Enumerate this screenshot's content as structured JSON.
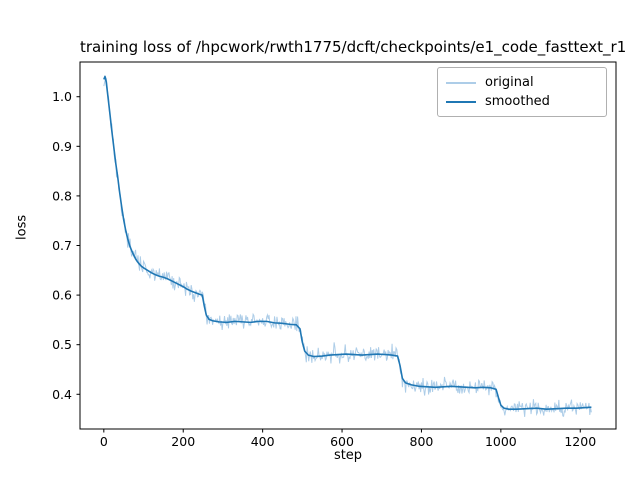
{
  "chart_data": {
    "type": "line",
    "title": "training loss of /hpcwork/rwth1775/dcft/checkpoints/e1_code_fasttext_r1",
    "xlabel": "step",
    "ylabel": "loss",
    "xlim": [
      -60,
      1290
    ],
    "ylim": [
      0.33,
      1.07
    ],
    "xticks": [
      0,
      200,
      400,
      600,
      800,
      1000,
      1200
    ],
    "yticks": [
      0.4,
      0.5,
      0.6,
      0.7,
      0.8,
      0.9,
      1.0
    ],
    "grid": false,
    "background": "#ffffff",
    "spine_color": "#000000",
    "legend": {
      "position": "upper right",
      "border_color": "#b0b0b0",
      "entries": [
        {
          "label": "original",
          "color": "#adcde8"
        },
        {
          "label": "smoothed",
          "color": "#1f77b4"
        }
      ]
    },
    "series": [
      {
        "name": "original",
        "color": "#adcde8",
        "linewidth": 1,
        "derived_from": "smoothed",
        "noise_amplitude": 0.013,
        "sample_step": 2
      },
      {
        "name": "smoothed",
        "color": "#1f77b4",
        "linewidth": 1.6,
        "points": [
          [
            0,
            1.035
          ],
          [
            3,
            1.041
          ],
          [
            6,
            1.03
          ],
          [
            10,
            1.003
          ],
          [
            15,
            0.968
          ],
          [
            20,
            0.932
          ],
          [
            25,
            0.899
          ],
          [
            30,
            0.866
          ],
          [
            35,
            0.838
          ],
          [
            40,
            0.806
          ],
          [
            45,
            0.778
          ],
          [
            50,
            0.752
          ],
          [
            55,
            0.731
          ],
          [
            60,
            0.714
          ],
          [
            65,
            0.7
          ],
          [
            70,
            0.69
          ],
          [
            75,
            0.681
          ],
          [
            80,
            0.673
          ],
          [
            85,
            0.667
          ],
          [
            90,
            0.662
          ],
          [
            95,
            0.658
          ],
          [
            100,
            0.655
          ],
          [
            110,
            0.65
          ],
          [
            120,
            0.645
          ],
          [
            130,
            0.641
          ],
          [
            140,
            0.638
          ],
          [
            150,
            0.636
          ],
          [
            160,
            0.633
          ],
          [
            170,
            0.629
          ],
          [
            180,
            0.625
          ],
          [
            190,
            0.621
          ],
          [
            200,
            0.617
          ],
          [
            210,
            0.612
          ],
          [
            220,
            0.608
          ],
          [
            230,
            0.605
          ],
          [
            240,
            0.602
          ],
          [
            248,
            0.6
          ],
          [
            253,
            0.578
          ],
          [
            258,
            0.56
          ],
          [
            265,
            0.551
          ],
          [
            275,
            0.548
          ],
          [
            290,
            0.546
          ],
          [
            310,
            0.545
          ],
          [
            330,
            0.547
          ],
          [
            350,
            0.546
          ],
          [
            370,
            0.545
          ],
          [
            390,
            0.547
          ],
          [
            410,
            0.547
          ],
          [
            430,
            0.544
          ],
          [
            450,
            0.543
          ],
          [
            470,
            0.541
          ],
          [
            485,
            0.54
          ],
          [
            494,
            0.532
          ],
          [
            500,
            0.505
          ],
          [
            506,
            0.487
          ],
          [
            515,
            0.479
          ],
          [
            530,
            0.476
          ],
          [
            550,
            0.477
          ],
          [
            570,
            0.479
          ],
          [
            590,
            0.48
          ],
          [
            610,
            0.481
          ],
          [
            630,
            0.48
          ],
          [
            650,
            0.479
          ],
          [
            670,
            0.48
          ],
          [
            690,
            0.481
          ],
          [
            710,
            0.48
          ],
          [
            725,
            0.479
          ],
          [
            740,
            0.477
          ],
          [
            746,
            0.458
          ],
          [
            752,
            0.432
          ],
          [
            760,
            0.423
          ],
          [
            775,
            0.419
          ],
          [
            795,
            0.416
          ],
          [
            815,
            0.415
          ],
          [
            835,
            0.414
          ],
          [
            855,
            0.415
          ],
          [
            875,
            0.416
          ],
          [
            895,
            0.415
          ],
          [
            915,
            0.414
          ],
          [
            935,
            0.413
          ],
          [
            955,
            0.414
          ],
          [
            975,
            0.413
          ],
          [
            988,
            0.41
          ],
          [
            994,
            0.393
          ],
          [
            1000,
            0.378
          ],
          [
            1008,
            0.372
          ],
          [
            1020,
            0.37
          ],
          [
            1040,
            0.37
          ],
          [
            1065,
            0.371
          ],
          [
            1090,
            0.372
          ],
          [
            1115,
            0.37
          ],
          [
            1140,
            0.371
          ],
          [
            1165,
            0.372
          ],
          [
            1190,
            0.372
          ],
          [
            1210,
            0.373
          ],
          [
            1228,
            0.374
          ]
        ]
      }
    ]
  }
}
